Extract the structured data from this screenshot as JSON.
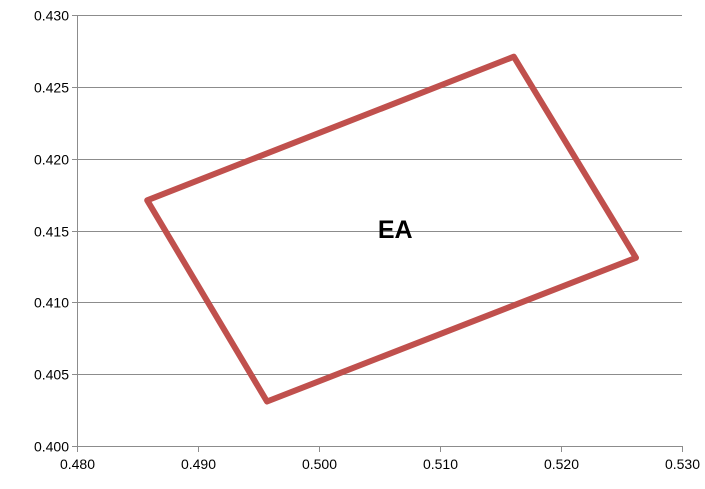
{
  "chart_data": {
    "type": "line",
    "title": "",
    "xlabel": "",
    "ylabel": "",
    "xlim": [
      0.48,
      0.53
    ],
    "ylim": [
      0.4,
      0.43
    ],
    "x_ticks": [
      0.48,
      0.49,
      0.5,
      0.51,
      0.52,
      0.53
    ],
    "x_tick_labels": [
      "0.480",
      "0.490",
      "0.500",
      "0.510",
      "0.520",
      "0.530"
    ],
    "y_ticks": [
      0.4,
      0.405,
      0.41,
      0.415,
      0.42,
      0.425,
      0.43
    ],
    "y_tick_labels": [
      "0.400",
      "0.405",
      "0.410",
      "0.415",
      "0.420",
      "0.425",
      "0.430"
    ],
    "grid": "horizontal",
    "legend": "none",
    "series": [
      {
        "color": "#c0504d",
        "closed": true,
        "points": [
          {
            "x": 0.4858,
            "y": 0.4171
          },
          {
            "x": 0.5161,
            "y": 0.4271
          },
          {
            "x": 0.5262,
            "y": 0.4131
          },
          {
            "x": 0.4957,
            "y": 0.4031
          },
          {
            "x": 0.4858,
            "y": 0.4171
          }
        ]
      }
    ],
    "annotations": [
      {
        "text": "EA",
        "x": 0.5063,
        "y": 0.4151
      }
    ]
  }
}
